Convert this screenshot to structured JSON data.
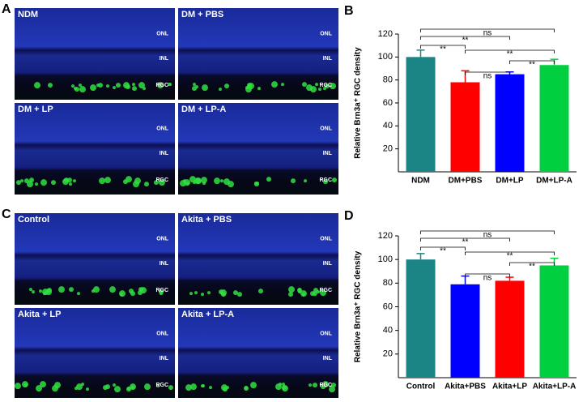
{
  "panels": [
    {
      "letter": "A",
      "tiles": [
        {
          "label": "NDM",
          "layers": [
            "ONL",
            "INL",
            "RGC"
          ]
        },
        {
          "label": "DM + PBS",
          "layers": [
            "ONL",
            "INL",
            "RGC"
          ]
        },
        {
          "label": "DM + LP",
          "layers": [
            "ONL",
            "INL",
            "RGC"
          ]
        },
        {
          "label": "DM + LP-A",
          "layers": [
            "ONL",
            "INL",
            "RGC"
          ]
        }
      ]
    },
    {
      "letter": "C",
      "tiles": [
        {
          "label": "Control",
          "layers": [
            "ONL",
            "INL",
            "RGC"
          ]
        },
        {
          "label": "Akita + PBS",
          "layers": [
            "ONL",
            "INL",
            "RGC"
          ]
        },
        {
          "label": "Akita + LP",
          "layers": [
            "ONL",
            "INL",
            "RGC"
          ]
        },
        {
          "label": "Akita + LP-A",
          "layers": [
            "ONL",
            "INL",
            "RGC"
          ]
        }
      ]
    }
  ],
  "chart_data": [
    {
      "type": "bar",
      "letter": "B",
      "ylabel": "Relative Brn3a⁺ RGC density",
      "categories": [
        "NDM",
        "DM+PBS",
        "DM+LP",
        "DM+LP-A"
      ],
      "values": [
        100,
        78,
        85,
        93
      ],
      "errors": [
        6,
        10,
        2,
        5
      ],
      "colors": [
        "#1b8484",
        "#ff0000",
        "#0000ff",
        "#00d040"
      ],
      "ylim": [
        0,
        120
      ],
      "yticks": [
        20,
        40,
        60,
        80,
        100,
        120
      ],
      "comparisons": [
        {
          "a": 0,
          "b": 3,
          "label": "ns"
        },
        {
          "a": 0,
          "b": 2,
          "label": "**"
        },
        {
          "a": 0,
          "b": 1,
          "label": "**"
        },
        {
          "a": 1,
          "b": 3,
          "label": "**"
        },
        {
          "a": 2,
          "b": 3,
          "label": "**"
        },
        {
          "a": 1,
          "b": 2,
          "label": "ns"
        }
      ]
    },
    {
      "type": "bar",
      "letter": "D",
      "ylabel": "Relative Brn3a⁺ RGC density",
      "categories": [
        "Control",
        "Akita+PBS",
        "Akita+LP",
        "Akita+LP-A"
      ],
      "values": [
        100,
        79,
        82,
        95
      ],
      "errors": [
        5,
        7,
        3,
        6
      ],
      "colors": [
        "#1b8484",
        "#0000ff",
        "#ff0000",
        "#00d040"
      ],
      "ylim": [
        0,
        120
      ],
      "yticks": [
        20,
        40,
        60,
        80,
        100,
        120
      ],
      "comparisons": [
        {
          "a": 0,
          "b": 3,
          "label": "ns"
        },
        {
          "a": 0,
          "b": 2,
          "label": "**"
        },
        {
          "a": 0,
          "b": 1,
          "label": "**"
        },
        {
          "a": 1,
          "b": 3,
          "label": "**"
        },
        {
          "a": 2,
          "b": 3,
          "label": "**"
        },
        {
          "a": 1,
          "b": 2,
          "label": "ns"
        }
      ]
    }
  ]
}
